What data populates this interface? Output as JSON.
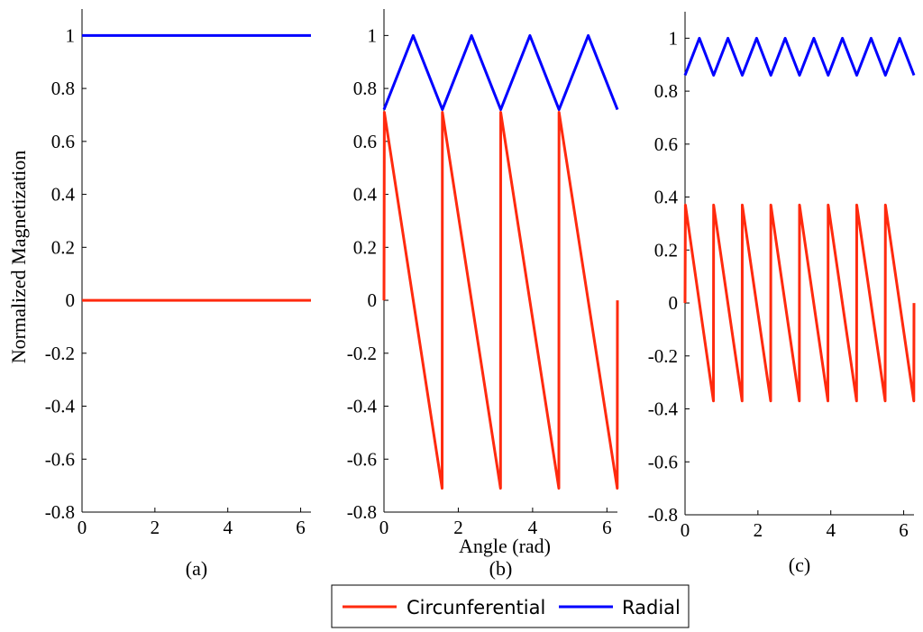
{
  "figure": {
    "ylabel": "Normalized Magnetization",
    "xlabel": "Angle (rad)",
    "legend": {
      "placement": "bottom-center",
      "entries": [
        {
          "name": "Circunferential",
          "color": "#ff2a0e"
        },
        {
          "name": "Radial",
          "color": "#0000ff"
        }
      ]
    }
  },
  "chart_data": [
    {
      "type": "line",
      "caption": "(a)",
      "xlim": [
        0,
        6.283
      ],
      "ylim": [
        -0.8,
        1.1
      ],
      "xticks": [
        "0",
        "2",
        "4",
        "6"
      ],
      "xtick_values": [
        0,
        2,
        4,
        6
      ],
      "yticks": [
        "-0.8",
        "-0.6",
        "-0.4",
        "-0.2",
        "0",
        "0.2",
        "0.4",
        "0.6",
        "0.8",
        "1"
      ],
      "ytick_values": [
        -0.8,
        -0.6,
        -0.4,
        -0.2,
        0,
        0.2,
        0.4,
        0.6,
        0.8,
        1
      ],
      "series": [
        {
          "name": "Radial",
          "color": "#0000ff",
          "x": [
            0,
            6.283
          ],
          "y": [
            1,
            1
          ]
        },
        {
          "name": "Circunferential",
          "color": "#ff2a0e",
          "x": [
            0,
            6.283
          ],
          "y": [
            0,
            0
          ]
        }
      ]
    },
    {
      "type": "line",
      "caption": "(b)",
      "xlim": [
        0,
        6.283
      ],
      "ylim": [
        -0.8,
        1.1
      ],
      "xticks": [
        "0",
        "2",
        "4",
        "6"
      ],
      "xtick_values": [
        0,
        2,
        4,
        6
      ],
      "yticks": [
        "-0.8",
        "-0.6",
        "-0.4",
        "-0.2",
        "0",
        "0.2",
        "0.4",
        "0.6",
        "0.8",
        "1"
      ],
      "ytick_values": [
        -0.8,
        -0.6,
        -0.4,
        -0.2,
        0,
        0.2,
        0.4,
        0.6,
        0.8,
        1
      ],
      "series": [
        {
          "name": "Radial",
          "color": "#0000ff",
          "x": [
            0,
            0.785,
            1.571,
            2.356,
            3.142,
            3.927,
            4.712,
            5.498,
            6.283
          ],
          "y": [
            0.72,
            1.0,
            0.72,
            1.0,
            0.72,
            1.0,
            0.72,
            1.0,
            0.72
          ]
        },
        {
          "name": "Circunferential",
          "color": "#ff2a0e",
          "x": [
            0,
            0.01,
            1.565,
            1.571,
            3.136,
            3.142,
            4.707,
            4.712,
            6.278,
            6.283
          ],
          "y": [
            0,
            0.71,
            -0.71,
            0.71,
            -0.71,
            0.71,
            -0.71,
            0.71,
            -0.71,
            0
          ]
        }
      ]
    },
    {
      "type": "line",
      "caption": "(c)",
      "xlim": [
        0,
        6.283
      ],
      "ylim": [
        -0.8,
        1.1
      ],
      "xticks": [
        "0",
        "2",
        "4",
        "6"
      ],
      "xtick_values": [
        0,
        2,
        4,
        6
      ],
      "yticks": [
        "-0.8",
        "-0.6",
        "-0.4",
        "-0.2",
        "0",
        "0.2",
        "0.4",
        "0.6",
        "0.8",
        "1"
      ],
      "ytick_values": [
        -0.8,
        -0.6,
        -0.4,
        -0.2,
        0,
        0.2,
        0.4,
        0.6,
        0.8,
        1
      ],
      "series": [
        {
          "name": "Radial",
          "color": "#0000ff",
          "x": [
            0,
            0.393,
            0.785,
            1.178,
            1.571,
            1.963,
            2.356,
            2.749,
            3.142,
            3.534,
            3.927,
            4.32,
            4.712,
            5.105,
            5.498,
            5.89,
            6.283
          ],
          "y": [
            0.86,
            1.0,
            0.86,
            1.0,
            0.86,
            1.0,
            0.86,
            1.0,
            0.86,
            1.0,
            0.86,
            1.0,
            0.86,
            1.0,
            0.86,
            1.0,
            0.86
          ]
        },
        {
          "name": "Circunferential",
          "color": "#ff2a0e",
          "x": [
            0,
            0.01,
            0.779,
            0.785,
            1.565,
            1.571,
            2.35,
            2.356,
            3.136,
            3.142,
            3.921,
            3.927,
            4.707,
            4.712,
            5.492,
            5.498,
            6.278,
            6.283
          ],
          "y": [
            0,
            0.37,
            -0.37,
            0.37,
            -0.37,
            0.37,
            -0.37,
            0.37,
            -0.37,
            0.37,
            -0.37,
            0.37,
            -0.37,
            0.37,
            -0.37,
            0.37,
            -0.37,
            0
          ]
        }
      ]
    }
  ]
}
